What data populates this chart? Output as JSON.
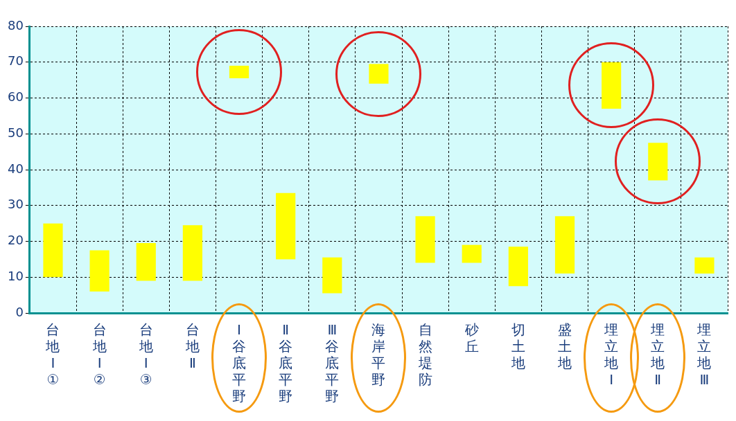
{
  "chart_data": {
    "type": "bar",
    "categories": [
      "台地Ⅰ①",
      "台地Ⅰ②",
      "台地Ⅰ③",
      "台地Ⅱ",
      "Ⅰ谷底平野",
      "Ⅱ谷底平野",
      "Ⅲ谷底平野",
      "海岸平野",
      "自然堤防",
      "砂丘",
      "切土地",
      "盛土地",
      "埋立地Ⅰ",
      "埋立地Ⅱ",
      "埋立地Ⅲ"
    ],
    "series": [
      {
        "color": "#ffff00",
        "base": [
          10,
          6,
          9,
          9,
          65.5,
          15,
          5.5,
          64,
          14,
          14,
          7.5,
          11,
          57,
          37,
          11
        ],
        "values": [
          15,
          11.5,
          10.5,
          15.5,
          3.5,
          18.5,
          10,
          5.5,
          13,
          5,
          11,
          16,
          13,
          10.5,
          4.5
        ]
      }
    ],
    "ylim": [
      0,
      80
    ],
    "yticks": [
      0,
      10,
      20,
      30,
      40,
      50,
      60,
      70,
      80
    ],
    "grid": true,
    "legend": false
  }
}
